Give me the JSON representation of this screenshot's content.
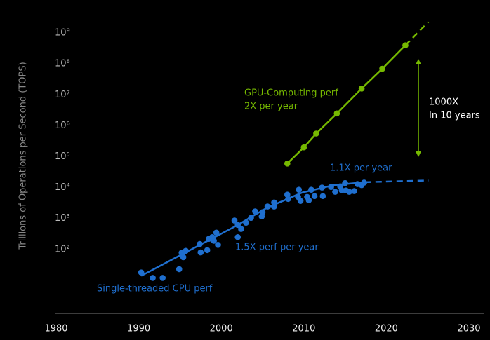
{
  "chart_data": {
    "type": "line",
    "y_label": "Trillions of Operations per Second (TOPS)",
    "xlim": [
      1980,
      2030
    ],
    "xticks": [
      1980,
      1990,
      2000,
      2010,
      2020,
      2030
    ],
    "ylim": [
      1,
      10000000000
    ],
    "log_y": true,
    "grid": false,
    "yticks": [
      {
        "value": 100,
        "label": "10²"
      },
      {
        "value": 1000,
        "label": "10³"
      },
      {
        "value": 10000,
        "label": "10⁴"
      },
      {
        "value": 100000,
        "label": "10⁵"
      },
      {
        "value": 1000000,
        "label": "10⁶"
      },
      {
        "value": 10000000,
        "label": "10⁷"
      },
      {
        "value": 100000000,
        "label": "10⁸"
      },
      {
        "value": 1000000000,
        "label": "10⁹"
      }
    ],
    "series": [
      {
        "color": "#76b900",
        "line": "solid",
        "markers": true,
        "x": [
          2008,
          2010,
          2011.5,
          2014,
          2017,
          2019.5,
          2022.3
        ],
        "values": [
          60000,
          200000,
          560000,
          2500000,
          16000000,
          70000000,
          400000000
        ]
      },
      {
        "color": "#76b900",
        "line": "dashed",
        "markers": false,
        "x": [
          2022.3,
          2025.1
        ],
        "values": [
          400000000,
          2300000000
        ]
      },
      {
        "color": "#1f6fcf",
        "line": "none",
        "markers": true,
        "x": [
          1990.3,
          1991.7,
          1992.9,
          1994.9,
          1995.2,
          1995.4,
          1995.7,
          1997.4,
          1997.5,
          1998.3,
          1998.5,
          1998.9,
          1999.1,
          1999.4,
          1999.6,
          2001.6,
          2002.0,
          2002.0,
          2002.4,
          2003.0,
          2003.6,
          2004.1,
          2004.9,
          2005.0,
          2005.6,
          2006.4,
          2006.4,
          2008.0,
          2008.1,
          2009.3,
          2009.4,
          2009.6,
          2010.4,
          2010.6,
          2010.9,
          2011.3,
          2012.2,
          2012.3,
          2013.3,
          2013.8,
          2014.4,
          2014.6,
          2015.0,
          2015.1,
          2015.5,
          2016.1,
          2016.5,
          2017.0,
          2017.3
        ],
        "values": [
          18,
          12,
          12,
          23,
          78,
          56,
          90,
          150,
          80,
          95,
          220,
          250,
          190,
          350,
          140,
          860,
          620,
          250,
          460,
          730,
          1050,
          1700,
          1170,
          1600,
          2450,
          3300,
          2450,
          5900,
          4300,
          5000,
          8500,
          3700,
          5000,
          3900,
          8500,
          5300,
          10000,
          5300,
          10500,
          7300,
          11000,
          8100,
          14000,
          8100,
          7300,
          7700,
          13000,
          12000,
          14500
        ]
      },
      {
        "color": "#1f6fcf",
        "line": "solid",
        "markers": false,
        "x": [
          1990.3,
          2001.7,
          2005.5,
          2009.8,
          2013.6,
          2017.4
        ],
        "values": [
          14,
          560,
          2200,
          6900,
          12000,
          15000
        ]
      },
      {
        "color": "#1f6fcf",
        "line": "dashed",
        "markers": false,
        "x": [
          2017.4,
          2025.1
        ],
        "values": [
          15000,
          17000
        ]
      }
    ],
    "annotations": [
      {
        "text": "GPU-Computing perf",
        "color": "#76b900"
      },
      {
        "text": "2X per year",
        "color": "#76b900"
      },
      {
        "text": "1000X",
        "color": "#ffffff"
      },
      {
        "text": "In 10 years",
        "color": "#ffffff"
      },
      {
        "text": "1.1X per year",
        "color": "#1f6fcf"
      },
      {
        "text": "1.5X perf per year",
        "color": "#1f6fcf"
      },
      {
        "text": "Single-threaded CPU perf",
        "color": "#1f6fcf"
      }
    ]
  }
}
